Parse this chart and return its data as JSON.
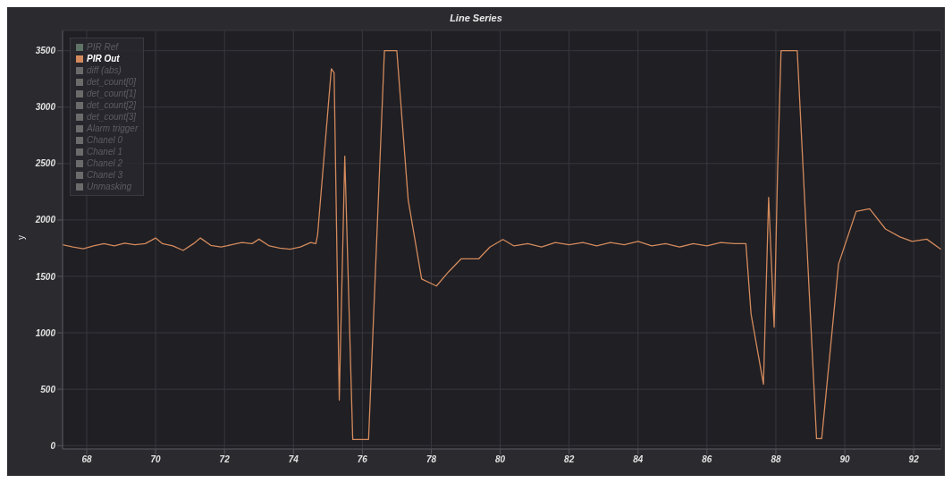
{
  "chart_data": {
    "type": "line",
    "title": "Line Series",
    "ylabel": "y",
    "x": [
      67.3,
      67.6,
      67.9,
      68.2,
      68.5,
      68.8,
      69.1,
      69.4,
      69.7,
      70.0,
      70.2,
      70.5,
      70.8,
      71.1,
      71.3,
      71.6,
      71.9,
      72.2,
      72.5,
      72.8,
      73.0,
      73.3,
      73.6,
      73.9,
      74.2,
      74.5,
      74.65,
      74.7,
      75.1,
      75.18,
      75.33,
      75.49,
      75.72,
      76.18,
      76.64,
      77.0,
      77.33,
      77.72,
      78.15,
      78.5,
      78.87,
      79.38,
      79.7,
      80.08,
      80.4,
      80.8,
      81.2,
      81.6,
      82.0,
      82.4,
      82.8,
      83.2,
      83.6,
      84.0,
      84.4,
      84.8,
      85.2,
      85.6,
      86.0,
      86.4,
      86.8,
      87.13,
      87.28,
      87.64,
      87.79,
      87.95,
      88.05,
      88.15,
      88.62,
      89.18,
      89.33,
      89.82,
      90.33,
      90.72,
      91.18,
      91.6,
      91.95,
      92.38,
      92.79
    ],
    "series": [
      {
        "name": "PIR Ref",
        "color": "#5f7466",
        "values": [
          null,
          null,
          null,
          null,
          null,
          null,
          null,
          null,
          null,
          null,
          null,
          null,
          null,
          null,
          null,
          null,
          null,
          null,
          null,
          null,
          null,
          null,
          null,
          null,
          null,
          null,
          null,
          null,
          null,
          null,
          null,
          null,
          null,
          null,
          null,
          null,
          null,
          null,
          null,
          null,
          null,
          null,
          null,
          null,
          null,
          null,
          null,
          null,
          null,
          null,
          null,
          null,
          null,
          null,
          null,
          null,
          null,
          null,
          null,
          null,
          null,
          null,
          null,
          null,
          null,
          null,
          null,
          null,
          null,
          null,
          null,
          null,
          null,
          null,
          null,
          null,
          null,
          null,
          null
        ]
      },
      {
        "name": "PIR Out",
        "color": "#d48a5c",
        "values": [
          1780,
          1760,
          1745,
          1770,
          1790,
          1770,
          1795,
          1780,
          1790,
          1840,
          1790,
          1770,
          1730,
          1790,
          1840,
          1775,
          1760,
          1780,
          1800,
          1790,
          1830,
          1770,
          1750,
          1740,
          1760,
          1800,
          1790,
          1866,
          3340,
          3305,
          404,
          2566,
          55,
          55,
          3500,
          3500,
          2177,
          1477,
          1415,
          1540,
          1656,
          1656,
          1760,
          1827,
          1770,
          1790,
          1760,
          1800,
          1780,
          1800,
          1770,
          1800,
          1780,
          1810,
          1770,
          1790,
          1760,
          1790,
          1770,
          1800,
          1790,
          1790,
          1166,
          544,
          2200,
          1050,
          2434,
          3500,
          3500,
          62,
          62,
          1610,
          2076,
          2100,
          1920,
          1850,
          1810,
          1830,
          1740
        ]
      },
      {
        "name": "diff (abs)",
        "color": "#6b6b6b",
        "values": [
          null,
          null,
          null,
          null,
          null,
          null,
          null,
          null,
          null,
          null,
          null,
          null,
          null,
          null,
          null,
          null,
          null,
          null,
          null,
          null,
          null,
          null,
          null,
          null,
          null,
          null,
          null,
          null,
          null,
          null,
          null,
          null,
          null,
          null,
          null,
          null,
          null,
          null,
          null,
          null,
          null,
          null,
          null,
          null,
          null,
          null,
          null,
          null,
          null,
          null,
          null,
          null,
          null,
          null,
          null,
          null,
          null,
          null,
          null,
          null,
          null,
          null,
          null,
          null,
          null,
          null,
          null,
          null,
          null,
          null,
          null,
          null,
          null,
          null,
          null,
          null,
          null,
          null,
          null
        ]
      },
      {
        "name": "det_count[0]",
        "color": "#6b6b6b",
        "values": [
          null,
          null,
          null,
          null,
          null,
          null,
          null,
          null,
          null,
          null,
          null,
          null,
          null,
          null,
          null,
          null,
          null,
          null,
          null,
          null,
          null,
          null,
          null,
          null,
          null,
          null,
          null,
          null,
          null,
          null,
          null,
          null,
          null,
          null,
          null,
          null,
          null,
          null,
          null,
          null,
          null,
          null,
          null,
          null,
          null,
          null,
          null,
          null,
          null,
          null,
          null,
          null,
          null,
          null,
          null,
          null,
          null,
          null,
          null,
          null,
          null,
          null,
          null,
          null,
          null,
          null,
          null,
          null,
          null,
          null,
          null,
          null,
          null,
          null,
          null,
          null,
          null,
          null,
          null
        ]
      },
      {
        "name": "det_count[1]",
        "color": "#6b6b6b",
        "values": [
          null,
          null,
          null,
          null,
          null,
          null,
          null,
          null,
          null,
          null,
          null,
          null,
          null,
          null,
          null,
          null,
          null,
          null,
          null,
          null,
          null,
          null,
          null,
          null,
          null,
          null,
          null,
          null,
          null,
          null,
          null,
          null,
          null,
          null,
          null,
          null,
          null,
          null,
          null,
          null,
          null,
          null,
          null,
          null,
          null,
          null,
          null,
          null,
          null,
          null,
          null,
          null,
          null,
          null,
          null,
          null,
          null,
          null,
          null,
          null,
          null,
          null,
          null,
          null,
          null,
          null,
          null,
          null,
          null,
          null,
          null,
          null,
          null,
          null,
          null,
          null,
          null,
          null,
          null
        ]
      },
      {
        "name": "det_count[2]",
        "color": "#6b6b6b",
        "values": [
          null,
          null,
          null,
          null,
          null,
          null,
          null,
          null,
          null,
          null,
          null,
          null,
          null,
          null,
          null,
          null,
          null,
          null,
          null,
          null,
          null,
          null,
          null,
          null,
          null,
          null,
          null,
          null,
          null,
          null,
          null,
          null,
          null,
          null,
          null,
          null,
          null,
          null,
          null,
          null,
          null,
          null,
          null,
          null,
          null,
          null,
          null,
          null,
          null,
          null,
          null,
          null,
          null,
          null,
          null,
          null,
          null,
          null,
          null,
          null,
          null,
          null,
          null,
          null,
          null,
          null,
          null,
          null,
          null,
          null,
          null,
          null,
          null,
          null,
          null,
          null,
          null,
          null,
          null
        ]
      },
      {
        "name": "det_count[3]",
        "color": "#6b6b6b",
        "values": [
          null,
          null,
          null,
          null,
          null,
          null,
          null,
          null,
          null,
          null,
          null,
          null,
          null,
          null,
          null,
          null,
          null,
          null,
          null,
          null,
          null,
          null,
          null,
          null,
          null,
          null,
          null,
          null,
          null,
          null,
          null,
          null,
          null,
          null,
          null,
          null,
          null,
          null,
          null,
          null,
          null,
          null,
          null,
          null,
          null,
          null,
          null,
          null,
          null,
          null,
          null,
          null,
          null,
          null,
          null,
          null,
          null,
          null,
          null,
          null,
          null,
          null,
          null,
          null,
          null,
          null,
          null,
          null,
          null,
          null,
          null,
          null,
          null,
          null,
          null,
          null,
          null,
          null,
          null
        ]
      },
      {
        "name": "Alarm trigger",
        "color": "#6b6b6b",
        "values": [
          null,
          null,
          null,
          null,
          null,
          null,
          null,
          null,
          null,
          null,
          null,
          null,
          null,
          null,
          null,
          null,
          null,
          null,
          null,
          null,
          null,
          null,
          null,
          null,
          null,
          null,
          null,
          null,
          null,
          null,
          null,
          null,
          null,
          null,
          null,
          null,
          null,
          null,
          null,
          null,
          null,
          null,
          null,
          null,
          null,
          null,
          null,
          null,
          null,
          null,
          null,
          null,
          null,
          null,
          null,
          null,
          null,
          null,
          null,
          null,
          null,
          null,
          null,
          null,
          null,
          null,
          null,
          null,
          null,
          null,
          null,
          null,
          null,
          null,
          null,
          null,
          null,
          null,
          null
        ]
      },
      {
        "name": "Chanel 0",
        "color": "#6b6b6b",
        "values": [
          null,
          null,
          null,
          null,
          null,
          null,
          null,
          null,
          null,
          null,
          null,
          null,
          null,
          null,
          null,
          null,
          null,
          null,
          null,
          null,
          null,
          null,
          null,
          null,
          null,
          null,
          null,
          null,
          null,
          null,
          null,
          null,
          null,
          null,
          null,
          null,
          null,
          null,
          null,
          null,
          null,
          null,
          null,
          null,
          null,
          null,
          null,
          null,
          null,
          null,
          null,
          null,
          null,
          null,
          null,
          null,
          null,
          null,
          null,
          null,
          null,
          null,
          null,
          null,
          null,
          null,
          null,
          null,
          null,
          null,
          null,
          null,
          null,
          null,
          null,
          null,
          null,
          null,
          null
        ]
      },
      {
        "name": "Chanel 1",
        "color": "#6b6b6b",
        "values": [
          null,
          null,
          null,
          null,
          null,
          null,
          null,
          null,
          null,
          null,
          null,
          null,
          null,
          null,
          null,
          null,
          null,
          null,
          null,
          null,
          null,
          null,
          null,
          null,
          null,
          null,
          null,
          null,
          null,
          null,
          null,
          null,
          null,
          null,
          null,
          null,
          null,
          null,
          null,
          null,
          null,
          null,
          null,
          null,
          null,
          null,
          null,
          null,
          null,
          null,
          null,
          null,
          null,
          null,
          null,
          null,
          null,
          null,
          null,
          null,
          null,
          null,
          null,
          null,
          null,
          null,
          null,
          null,
          null,
          null,
          null,
          null,
          null,
          null,
          null,
          null,
          null,
          null,
          null
        ]
      },
      {
        "name": "Chanel 2",
        "color": "#6b6b6b",
        "values": [
          null,
          null,
          null,
          null,
          null,
          null,
          null,
          null,
          null,
          null,
          null,
          null,
          null,
          null,
          null,
          null,
          null,
          null,
          null,
          null,
          null,
          null,
          null,
          null,
          null,
          null,
          null,
          null,
          null,
          null,
          null,
          null,
          null,
          null,
          null,
          null,
          null,
          null,
          null,
          null,
          null,
          null,
          null,
          null,
          null,
          null,
          null,
          null,
          null,
          null,
          null,
          null,
          null,
          null,
          null,
          null,
          null,
          null,
          null,
          null,
          null,
          null,
          null,
          null,
          null,
          null,
          null,
          null,
          null,
          null,
          null,
          null,
          null,
          null,
          null,
          null,
          null,
          null,
          null
        ]
      },
      {
        "name": "Chanel 3",
        "color": "#6b6b6b",
        "values": [
          null,
          null,
          null,
          null,
          null,
          null,
          null,
          null,
          null,
          null,
          null,
          null,
          null,
          null,
          null,
          null,
          null,
          null,
          null,
          null,
          null,
          null,
          null,
          null,
          null,
          null,
          null,
          null,
          null,
          null,
          null,
          null,
          null,
          null,
          null,
          null,
          null,
          null,
          null,
          null,
          null,
          null,
          null,
          null,
          null,
          null,
          null,
          null,
          null,
          null,
          null,
          null,
          null,
          null,
          null,
          null,
          null,
          null,
          null,
          null,
          null,
          null,
          null,
          null,
          null,
          null,
          null,
          null,
          null,
          null,
          null,
          null,
          null,
          null,
          null,
          null,
          null,
          null,
          null
        ]
      },
      {
        "name": "Unmasking",
        "color": "#6b6b6b",
        "values": [
          null,
          null,
          null,
          null,
          null,
          null,
          null,
          null,
          null,
          null,
          null,
          null,
          null,
          null,
          null,
          null,
          null,
          null,
          null,
          null,
          null,
          null,
          null,
          null,
          null,
          null,
          null,
          null,
          null,
          null,
          null,
          null,
          null,
          null,
          null,
          null,
          null,
          null,
          null,
          null,
          null,
          null,
          null,
          null,
          null,
          null,
          null,
          null,
          null,
          null,
          null,
          null,
          null,
          null,
          null,
          null,
          null,
          null,
          null,
          null,
          null,
          null,
          null,
          null,
          null,
          null,
          null,
          null,
          null,
          null,
          null,
          null,
          null,
          null,
          null,
          null,
          null,
          null,
          null
        ]
      }
    ],
    "xlim": [
      67.3,
      92.8
    ],
    "ylim": [
      -30,
      3680
    ],
    "xticks": [
      68,
      70,
      72,
      74,
      76,
      78,
      80,
      82,
      84,
      86,
      88,
      90,
      92
    ],
    "yticks": [
      0,
      500,
      1000,
      1500,
      2000,
      2500,
      3000,
      3500
    ],
    "grid": true,
    "legend": "top left"
  }
}
